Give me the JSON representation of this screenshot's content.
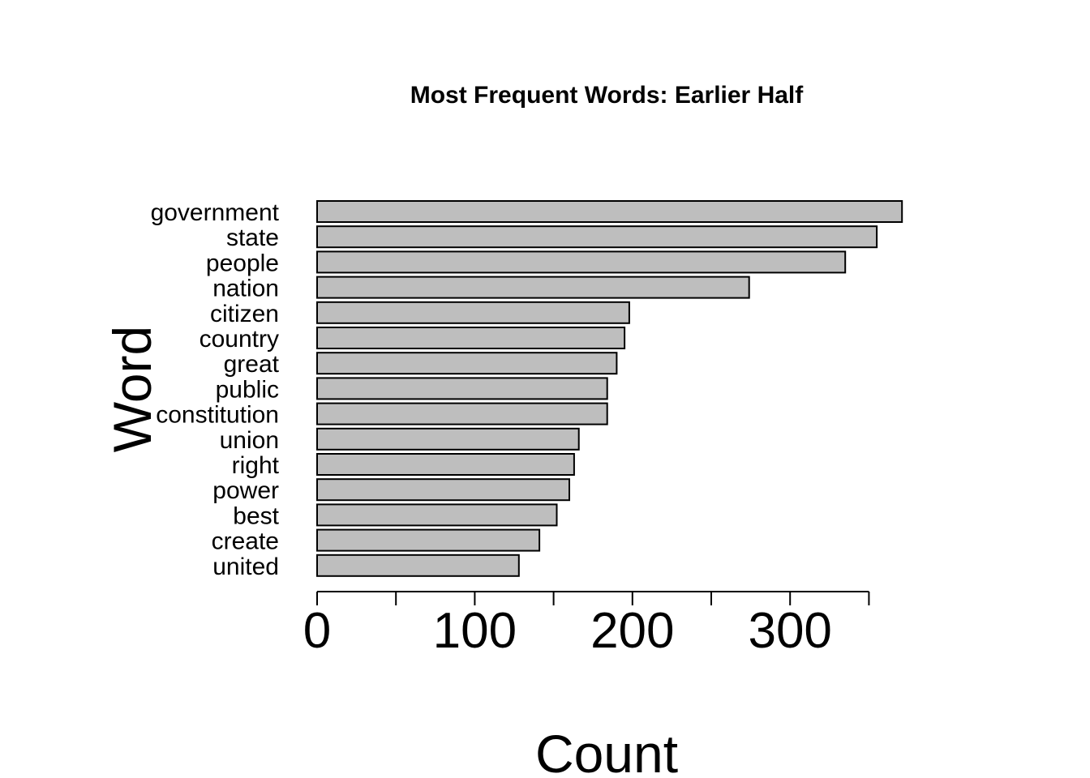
{
  "chart_data": {
    "type": "bar",
    "orientation": "horizontal",
    "title": "Most Frequent Words: Earlier Half",
    "xlabel": "Count",
    "ylabel": "Word",
    "categories": [
      "government",
      "state",
      "people",
      "nation",
      "citizen",
      "country",
      "great",
      "public",
      "constitution",
      "union",
      "right",
      "power",
      "best",
      "create",
      "united"
    ],
    "values": [
      371,
      355,
      335,
      274,
      198,
      195,
      190,
      184,
      184,
      166,
      163,
      160,
      152,
      141,
      128
    ],
    "xlim": [
      0,
      350
    ],
    "xticks": [
      0,
      50,
      100,
      150,
      200,
      250,
      300,
      350
    ],
    "xtick_labels": [
      "0",
      "100",
      "200",
      "300"
    ],
    "grid": false,
    "colors": {
      "bar_fill": "#bebebe",
      "bar_stroke": "#000000"
    }
  }
}
